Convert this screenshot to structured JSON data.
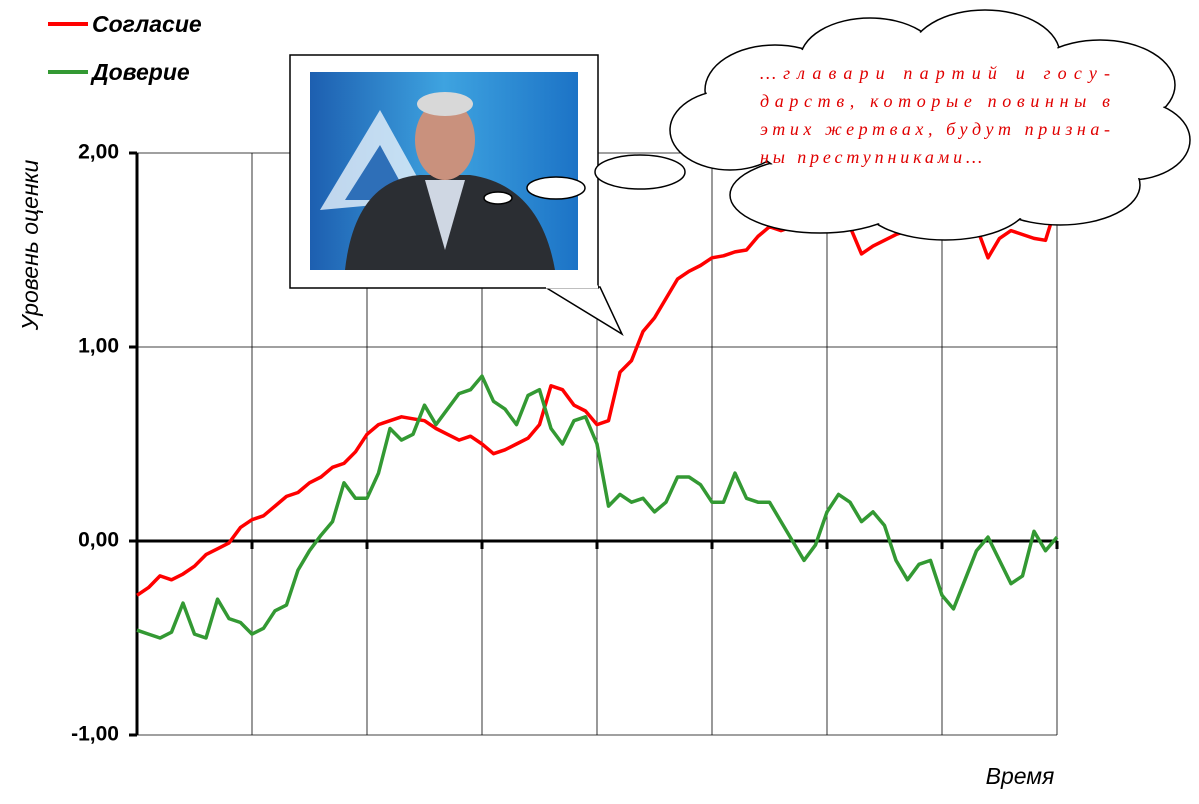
{
  "chart_data": {
    "type": "line",
    "y_label": "Уровень оценки",
    "x_label": "Время",
    "annotation": [
      "…главари партий и госу-",
      "дарств, которые повинны в",
      "этих жертвах, будут призна-",
      "ны преступниками…"
    ],
    "categories": [
      null,
      null,
      null,
      null,
      null,
      null,
      null,
      null,
      null,
      null,
      null,
      null,
      null,
      null,
      null,
      null,
      null,
      null,
      null,
      null,
      null,
      null,
      null,
      null,
      null,
      null,
      null,
      null,
      null,
      null,
      null,
      null,
      null,
      null,
      null,
      null,
      null,
      null,
      null,
      null,
      null,
      null,
      null,
      null,
      null,
      null,
      null,
      null,
      null,
      null,
      null,
      null,
      null,
      null,
      null,
      null,
      null,
      null,
      null,
      null,
      null,
      null,
      null,
      null,
      null,
      null,
      null,
      null,
      null,
      null,
      null,
      null,
      null,
      null,
      null,
      null,
      null,
      null,
      null,
      null,
      null
    ],
    "series": [
      {
        "name": "Согласие",
        "color": "#ff0000",
        "values": [
          -0.28,
          -0.24,
          -0.18,
          -0.2,
          -0.17,
          -0.13,
          -0.07,
          -0.04,
          -0.01,
          0.07,
          0.11,
          0.13,
          0.18,
          0.23,
          0.25,
          0.3,
          0.33,
          0.38,
          0.4,
          0.46,
          0.55,
          0.6,
          0.62,
          0.64,
          0.63,
          0.62,
          0.58,
          0.55,
          0.52,
          0.54,
          0.5,
          0.45,
          0.47,
          0.5,
          0.53,
          0.6,
          0.8,
          0.78,
          0.7,
          0.67,
          0.6,
          0.62,
          0.87,
          0.93,
          1.08,
          1.15,
          1.25,
          1.35,
          1.39,
          1.42,
          1.46,
          1.47,
          1.49,
          1.5,
          1.57,
          1.62,
          1.6,
          1.62,
          1.65,
          1.68,
          1.7,
          1.75,
          1.62,
          1.48,
          1.52,
          1.55,
          1.58,
          1.6,
          1.62,
          1.65,
          1.67,
          1.68,
          1.65,
          1.62,
          1.46,
          1.56,
          1.6,
          1.58,
          1.56,
          1.55,
          1.74
        ]
      },
      {
        "name": "Доверие",
        "color": "#339933",
        "values": [
          -0.46,
          -0.48,
          -0.5,
          -0.47,
          -0.32,
          -0.48,
          -0.5,
          -0.3,
          -0.4,
          -0.42,
          -0.48,
          -0.45,
          -0.36,
          -0.33,
          -0.15,
          -0.05,
          0.03,
          0.1,
          0.3,
          0.22,
          0.22,
          0.35,
          0.58,
          0.52,
          0.55,
          0.7,
          0.6,
          0.68,
          0.76,
          0.78,
          0.85,
          0.72,
          0.68,
          0.6,
          0.75,
          0.78,
          0.58,
          0.5,
          0.62,
          0.64,
          0.5,
          0.18,
          0.24,
          0.2,
          0.22,
          0.15,
          0.2,
          0.33,
          0.33,
          0.29,
          0.2,
          0.2,
          0.35,
          0.22,
          0.2,
          0.2,
          0.1,
          0.0,
          -0.1,
          -0.02,
          0.15,
          0.24,
          0.2,
          0.1,
          0.15,
          0.08,
          -0.1,
          -0.2,
          -0.12,
          -0.1,
          -0.28,
          -0.35,
          -0.2,
          -0.05,
          0.02,
          -0.1,
          -0.22,
          -0.18,
          0.05,
          -0.05,
          0.02
        ]
      }
    ],
    "ylim": [
      -1,
      2
    ],
    "yticks": [
      {
        "value": -1,
        "label": "-1,00"
      },
      {
        "value": 0,
        "label": "0,00"
      },
      {
        "value": 1,
        "label": "1,00"
      },
      {
        "value": 2,
        "label": "2,00"
      }
    ],
    "grid": true
  }
}
